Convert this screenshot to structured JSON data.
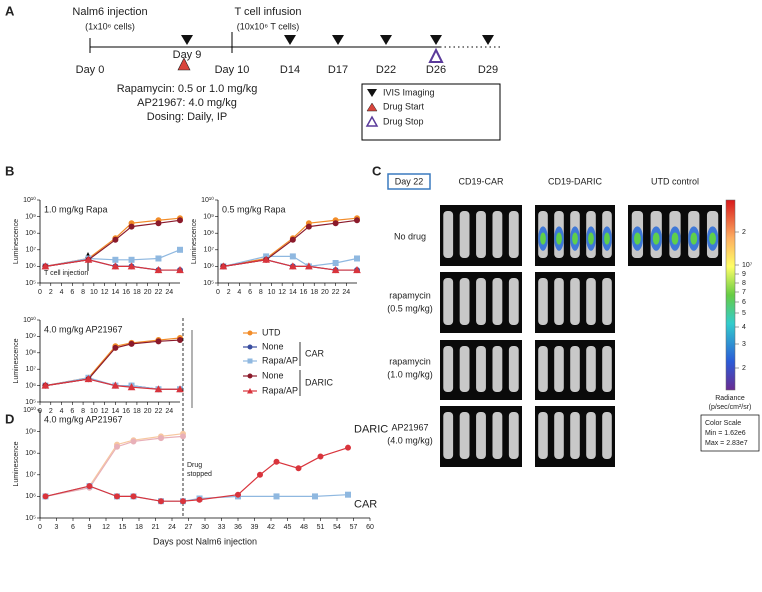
{
  "panel_a": {
    "label": "A",
    "injection": "Nalm6 injection",
    "injection_dose": "(1x10⁶ cells)",
    "infusion": "T cell infusion",
    "infusion_dose": "(10x10⁶ T cells)",
    "timepoints": [
      "Day 0",
      "Day 9",
      "Day 10",
      "D14",
      "D17",
      "D22",
      "D26",
      "D29"
    ],
    "dosing": [
      "Rapamycin: 0.5 or 1.0 mg/kg",
      "AP21967: 4.0 mg/kg",
      "Dosing: Daily, IP"
    ],
    "legend": [
      "IVIS Imaging",
      "Drug Start",
      "Drug Stop"
    ]
  },
  "panel_b": {
    "label": "B"
  },
  "panel_c": {
    "label": "C",
    "day": "Day 22",
    "columns": [
      "CD19-CAR",
      "CD19-DARIC",
      "UTD control"
    ],
    "rows": [
      [
        "No drug"
      ],
      [
        "rapamycin",
        "(0.5 mg/kg)"
      ],
      [
        "rapamycin",
        "(1.0 mg/kg)"
      ],
      [
        "AP21967",
        "(4.0 mg/kg)"
      ]
    ],
    "colorbar": {
      "ticks": [
        "2",
        "10⁷",
        "9",
        "8",
        "7",
        "6",
        "5",
        "4",
        "3",
        "2"
      ],
      "title": "Radiance",
      "units": "(p/sec/cm²/sr)",
      "scale": [
        "Color Scale",
        "Min = 1.62e6",
        "Max = 2.83e7"
      ]
    }
  },
  "panel_d": {
    "label": "D"
  },
  "chart_data": [
    {
      "type": "line",
      "log": true,
      "title": "1.0 mg/kg Rapa",
      "ylabel": "Luminescence",
      "annotation": "T cell injection",
      "x": [
        1,
        9,
        14,
        17,
        22,
        26
      ],
      "xlim": [
        0,
        26
      ],
      "xticks": [
        0,
        2,
        4,
        6,
        8,
        10,
        12,
        14,
        16,
        18,
        20,
        22,
        24
      ],
      "ylim": [
        100000,
        10000000000
      ],
      "yticks": [
        {
          "value": 100000,
          "label": "10⁵"
        },
        {
          "value": 1000000,
          "label": "10⁶"
        },
        {
          "value": 10000000,
          "label": "10⁷"
        },
        {
          "value": 100000000,
          "label": "10⁸"
        },
        {
          "value": 1000000000,
          "label": "10⁹"
        },
        {
          "value": 10000000000,
          "label": "10¹⁰"
        }
      ],
      "legend_groups": [
        "CAR",
        "DARIC"
      ],
      "series": [
        {
          "name": "UTD",
          "color": "#f28c28",
          "marker": "circle",
          "values": [
            1000000,
            3000000,
            50000000,
            400000000,
            600000000,
            800000000
          ]
        },
        {
          "name": "None",
          "color": "#3a4ea0",
          "marker": "circle",
          "values": [
            1000000,
            2500000,
            1000000,
            1000000,
            600000,
            600000
          ]
        },
        {
          "name": "Rapa/AP",
          "color": "#8fb8e0",
          "marker": "square",
          "values": [
            1000000,
            3000000,
            2500000,
            2500000,
            3000000,
            10000000
          ]
        },
        {
          "name": "None",
          "color": "#8b1a2b",
          "marker": "circle",
          "values": [
            1000000,
            2500000,
            40000000,
            250000000,
            400000000,
            600000000
          ]
        },
        {
          "name": "Rapa/AP",
          "color": "#d9343c",
          "marker": "triangle",
          "values": [
            1000000,
            2500000,
            1000000,
            1000000,
            600000,
            600000
          ]
        }
      ]
    },
    {
      "type": "line",
      "log": true,
      "title": "0.5 mg/kg Rapa",
      "ylabel": "Luminescence",
      "x": [
        1,
        9,
        14,
        17,
        22,
        26
      ],
      "xlim": [
        0,
        26
      ],
      "xticks": [
        0,
        2,
        4,
        6,
        8,
        10,
        12,
        14,
        16,
        18,
        20,
        22,
        24
      ],
      "ylim": [
        100000,
        10000000000
      ],
      "yticks": [
        {
          "value": 100000,
          "label": "10⁵"
        },
        {
          "value": 1000000,
          "label": "10⁶"
        },
        {
          "value": 10000000,
          "label": "10⁷"
        },
        {
          "value": 100000000,
          "label": "10⁸"
        },
        {
          "value": 1000000000,
          "label": "10⁹"
        },
        {
          "value": 10000000000,
          "label": "10¹⁰"
        }
      ],
      "series": [
        {
          "color": "#f28c28",
          "marker": "circle",
          "values": [
            1000000,
            3000000,
            50000000,
            400000000,
            600000000,
            800000000
          ]
        },
        {
          "color": "#3a4ea0",
          "marker": "circle",
          "values": [
            1000000,
            2500000,
            1000000,
            1000000,
            600000,
            600000
          ]
        },
        {
          "color": "#8fb8e0",
          "marker": "square",
          "values": [
            1000000,
            4000000,
            4000000,
            1000000,
            1600000,
            3000000
          ]
        },
        {
          "color": "#8b1a2b",
          "marker": "circle",
          "values": [
            1000000,
            2500000,
            40000000,
            250000000,
            400000000,
            600000000
          ]
        },
        {
          "color": "#d9343c",
          "marker": "triangle",
          "values": [
            1000000,
            2500000,
            1000000,
            1000000,
            600000,
            600000
          ]
        }
      ]
    },
    {
      "type": "line",
      "log": true,
      "title": "4.0 mg/kg AP21967",
      "ylabel": "Luminescence",
      "x": [
        1,
        9,
        14,
        17,
        22,
        26
      ],
      "xlim": [
        0,
        26
      ],
      "xticks": [
        0,
        2,
        4,
        6,
        8,
        10,
        12,
        14,
        16,
        18,
        20,
        22,
        24
      ],
      "ylim": [
        100000,
        10000000000
      ],
      "yticks": [
        {
          "value": 100000,
          "label": "10⁵"
        },
        {
          "value": 1000000,
          "label": "10⁶"
        },
        {
          "value": 10000000,
          "label": "10⁷"
        },
        {
          "value": 100000000,
          "label": "10⁸"
        },
        {
          "value": 1000000000,
          "label": "10⁹"
        },
        {
          "value": 10000000000,
          "label": "10¹⁰"
        }
      ],
      "series": [
        {
          "color": "#f28c28",
          "marker": "circle",
          "values": [
            1000000,
            3000000,
            250000000,
            400000000,
            600000000,
            800000000
          ]
        },
        {
          "color": "#3a4ea0",
          "marker": "circle",
          "values": [
            1000000,
            2500000,
            1000000,
            1000000,
            600000,
            600000
          ]
        },
        {
          "color": "#8fb8e0",
          "marker": "square",
          "values": [
            1000000,
            3000000,
            1000000,
            1000000,
            600000,
            600000
          ]
        },
        {
          "color": "#8b1a2b",
          "marker": "circle",
          "values": [
            1000000,
            2500000,
            200000000,
            350000000,
            500000000,
            600000000
          ]
        },
        {
          "color": "#d9343c",
          "marker": "triangle",
          "values": [
            1000000,
            2500000,
            1000000,
            800000,
            600000,
            600000
          ]
        }
      ]
    },
    {
      "type": "line",
      "log": true,
      "title": "4.0 mg/kg AP21967",
      "ylabel": "Luminescence",
      "xlabel": "Days post Nalm6 injection",
      "annotation": [
        "Drug",
        "stopped"
      ],
      "vline": 26,
      "xlim": [
        0,
        60
      ],
      "xticks": [
        0,
        3,
        6,
        9,
        12,
        15,
        18,
        21,
        24,
        27,
        30,
        33,
        36,
        39,
        42,
        45,
        48,
        51,
        54,
        57,
        60
      ],
      "ylim": [
        100000,
        10000000000
      ],
      "yticks": [
        {
          "value": 100000,
          "label": "10⁵"
        },
        {
          "value": 1000000,
          "label": "10⁶"
        },
        {
          "value": 10000000,
          "label": "10⁷"
        },
        {
          "value": 100000000,
          "label": "10⁸"
        },
        {
          "value": 1000000000,
          "label": "10⁹"
        },
        {
          "value": 10000000000,
          "label": "10¹⁰"
        }
      ],
      "series": [
        {
          "color": "#f7c8a0",
          "marker": "circle",
          "x": [
            1,
            9,
            14,
            17,
            22,
            26
          ],
          "values": [
            1000000,
            3000000,
            250000000,
            400000000,
            600000000,
            800000000
          ]
        },
        {
          "color": "#e8b0b8",
          "marker": "circle",
          "x": [
            1,
            9,
            14,
            17,
            22,
            26
          ],
          "values": [
            1000000,
            2500000,
            200000000,
            350000000,
            500000000,
            600000000
          ]
        },
        {
          "name": "CAR",
          "color": "#8fb8e0",
          "marker": "square",
          "x": [
            1,
            9,
            14,
            17,
            22,
            26,
            29,
            36,
            43,
            50,
            56
          ],
          "values": [
            1000000,
            3000000,
            1000000,
            1000000,
            600000,
            600000,
            800000,
            1000000,
            1000000,
            1000000,
            1200000
          ]
        },
        {
          "name": "DARIC",
          "color": "#d9343c",
          "marker": "circle",
          "x": [
            1,
            9,
            14,
            17,
            22,
            26,
            29,
            36,
            40,
            43,
            47,
            51,
            56
          ],
          "values": [
            1000000,
            3000000,
            1000000,
            1000000,
            600000,
            600000,
            700000,
            1200000,
            10000000,
            40000000,
            20000000,
            70000000,
            180000000
          ]
        }
      ]
    }
  ]
}
